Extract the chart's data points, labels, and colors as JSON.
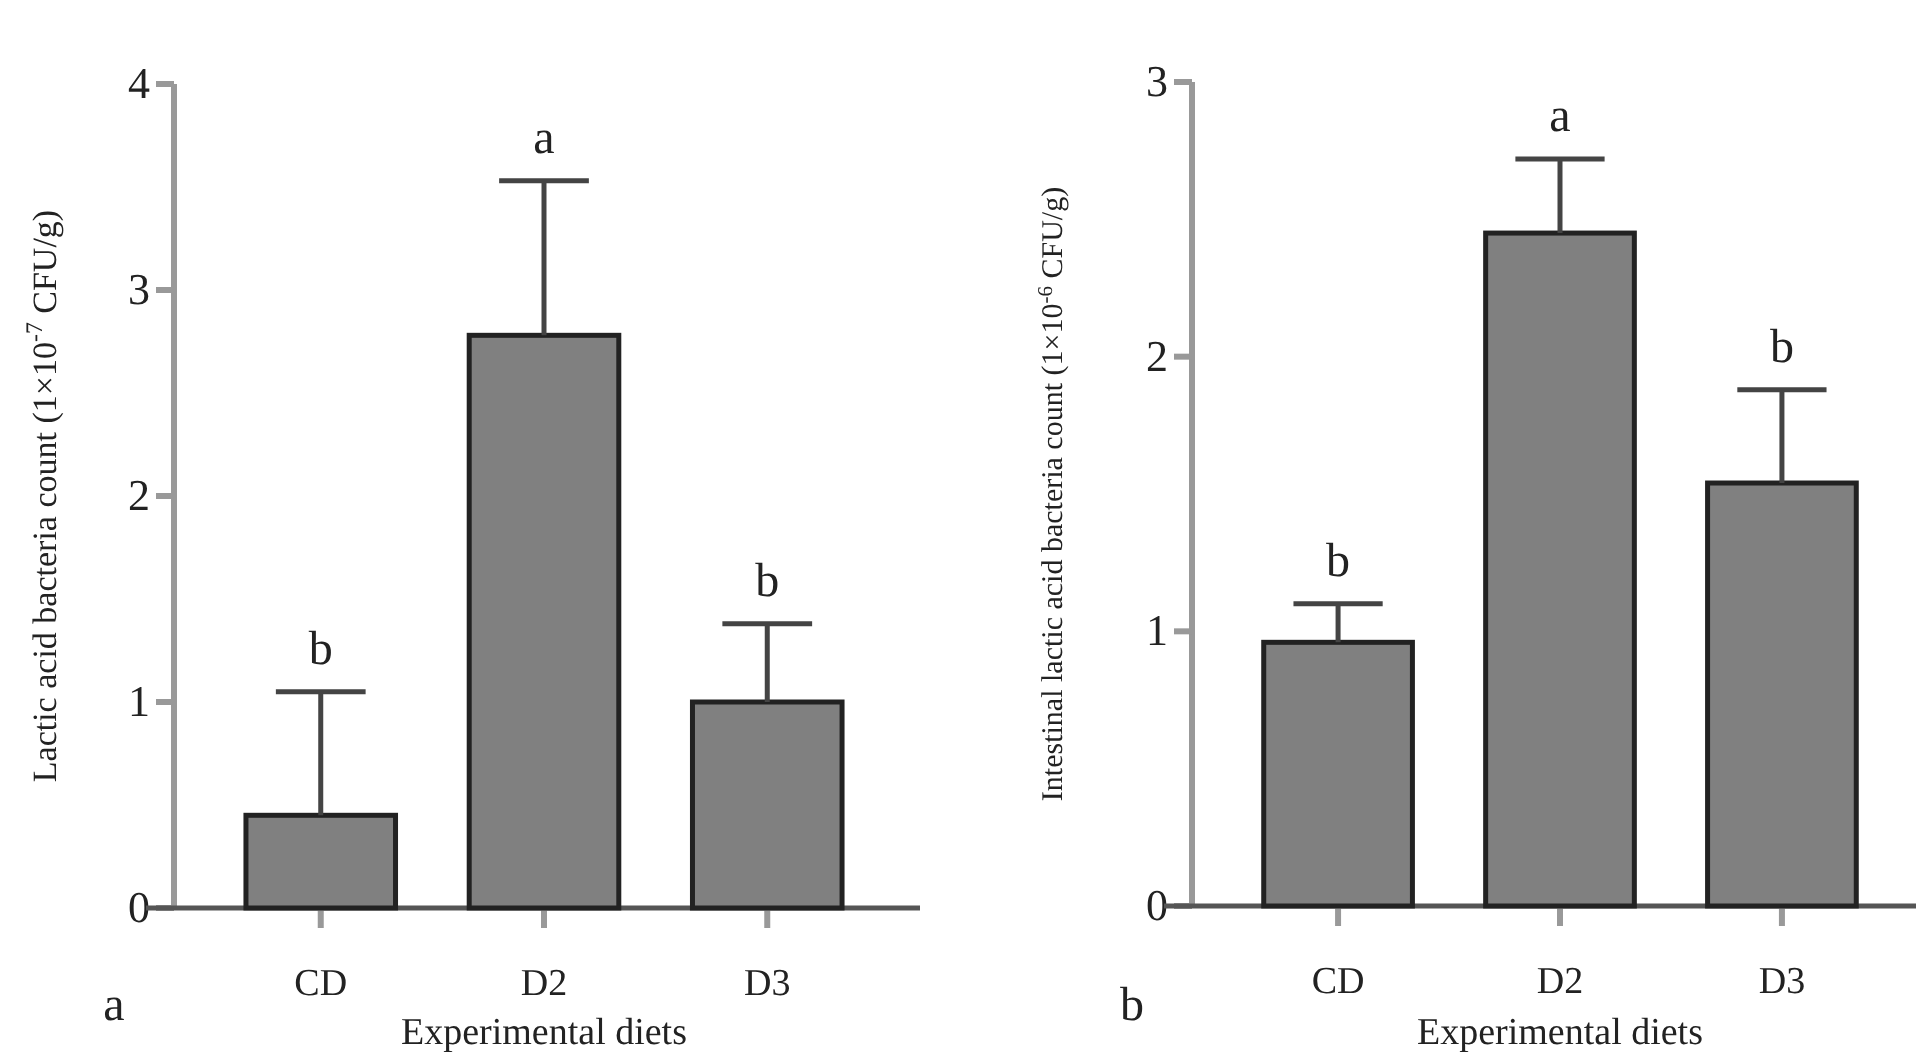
{
  "chart_data": [
    {
      "type": "bar",
      "categories": [
        "CD",
        "D2",
        "D3"
      ],
      "values": [
        0.45,
        2.78,
        1.0
      ],
      "errors": [
        [
          0.45,
          1.05
        ],
        [
          2.78,
          3.53
        ],
        [
          1.0,
          1.38
        ]
      ],
      "color": "#808080",
      "ylim": [
        0,
        4
      ],
      "yticks": [
        0,
        1,
        2,
        3,
        4
      ],
      "ylabel": "Lactic acid bacteria count (1×10$^{-7}$ CFU/g)",
      "xlabel": "Experimental diets",
      "annotations": [
        {
          "text": "b",
          "x": "CD",
          "y": 1.05
        },
        {
          "text": "a",
          "x": "D2",
          "y": 3.53
        },
        {
          "text": "b",
          "x": "D3",
          "y": 1.38
        },
        "a"
      ]
    },
    {
      "type": "bar",
      "categories": [
        "CD",
        "D2",
        "D3"
      ],
      "values": [
        0.96,
        2.45,
        1.54
      ],
      "errors": [
        [
          0.96,
          1.1
        ],
        [
          2.45,
          2.72
        ],
        [
          1.54,
          1.88
        ]
      ],
      "color": "#808080",
      "ylim": [
        0,
        3
      ],
      "yticks": [
        0,
        1,
        2,
        3
      ],
      "ylabel": "Intestinal lactic acid bacteria count (1×10$^{-6}$ CFU/g)",
      "xlabel": "Experimental diets",
      "annotations": [
        {
          "text": "b",
          "x": "CD",
          "y": 1.1
        },
        {
          "text": "a",
          "x": "D2",
          "y": 2.72
        },
        {
          "text": "b",
          "x": "D3",
          "y": 1.88
        },
        "b"
      ]
    }
  ]
}
